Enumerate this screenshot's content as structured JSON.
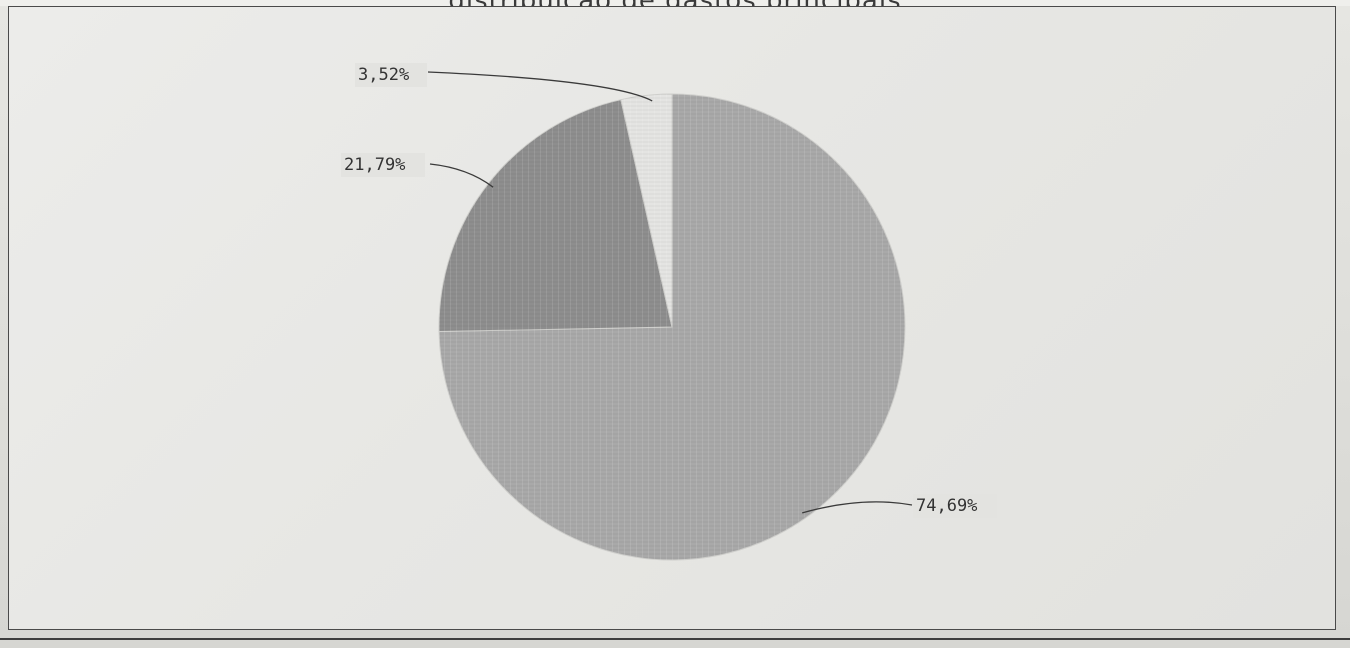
{
  "page": {
    "top_text": "distribuição de gastos principais"
  },
  "chart_data": {
    "type": "pie",
    "values": [
      74.69,
      21.79,
      3.52
    ],
    "value_labels": [
      "74,69%",
      "21,79%",
      "3,52%"
    ],
    "start_angle_deg": 0,
    "direction": "clockwise",
    "slice_colors": [
      "#a9a9a9",
      "#8e8e8e",
      "#e4e4e2"
    ],
    "legend": "none"
  }
}
